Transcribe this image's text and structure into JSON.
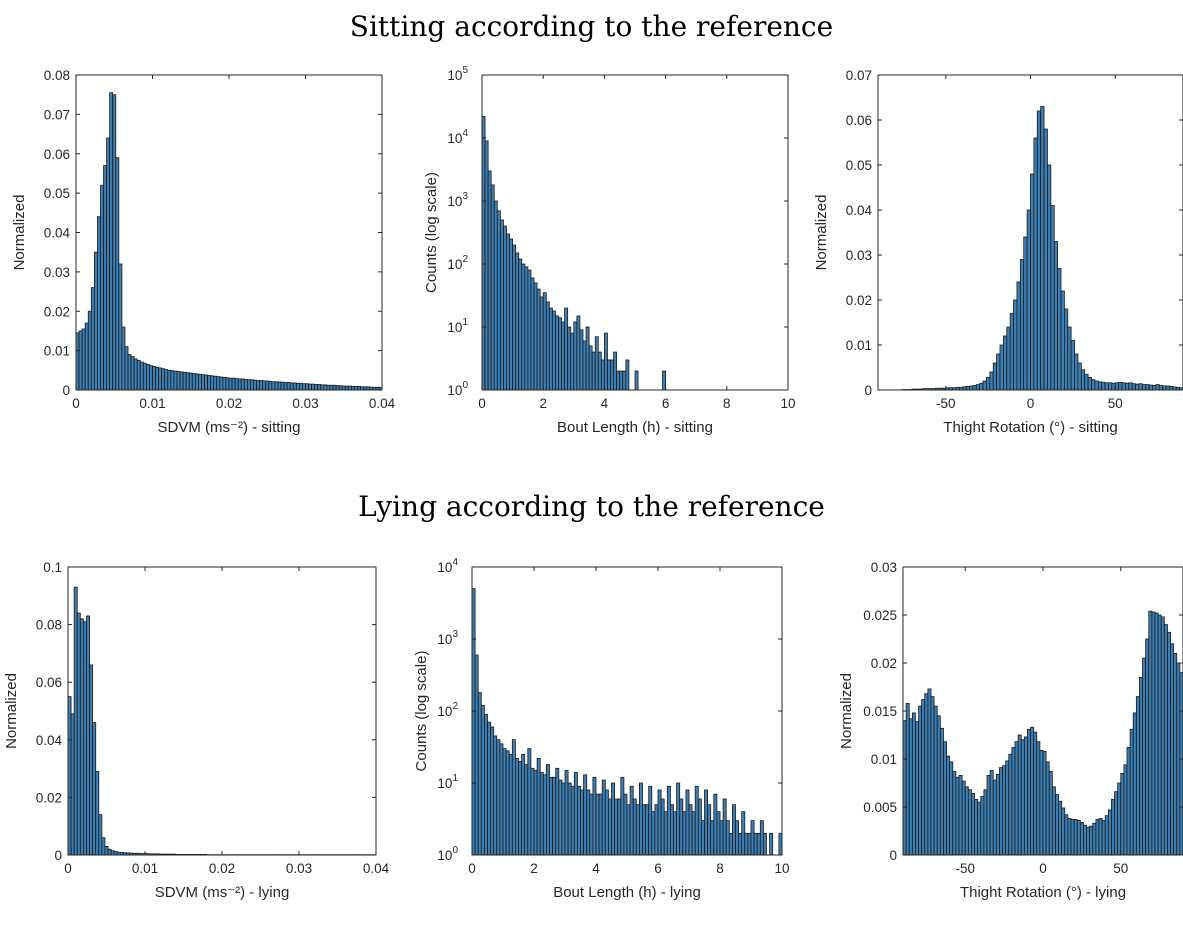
{
  "sections": [
    {
      "title": "Sitting according to the reference"
    },
    {
      "title": "Lying according to the reference"
    }
  ],
  "colors": {
    "bar": "#3d7fb3",
    "edge": "#1a1a1a",
    "axis": "#262626"
  },
  "chart_data": [
    {
      "type": "bar",
      "section": 0,
      "xlabel": "SDVM (ms⁻²) - sitting",
      "ylabel": "Normalized",
      "xlim": [
        0,
        0.04
      ],
      "ylim": [
        0,
        0.08
      ],
      "xticks": [
        0,
        0.01,
        0.02,
        0.03,
        0.04
      ],
      "xticklabels": [
        "0",
        "0.01",
        "0.02",
        "0.03",
        "0.04"
      ],
      "yticks": [
        0,
        0.01,
        0.02,
        0.03,
        0.04,
        0.05,
        0.06,
        0.07,
        0.08
      ],
      "yticklabels": [
        "0",
        "0.01",
        "0.02",
        "0.03",
        "0.04",
        "0.05",
        "0.06",
        "0.07",
        "0.08"
      ],
      "log_scale": false,
      "bin_start": 0,
      "bin_width": 0.0004,
      "values": [
        0.0145,
        0.015,
        0.0155,
        0.017,
        0.02,
        0.026,
        0.035,
        0.044,
        0.052,
        0.057,
        0.064,
        0.0755,
        0.075,
        0.059,
        0.032,
        0.016,
        0.011,
        0.009,
        0.0085,
        0.0079,
        0.0075,
        0.0071,
        0.0068,
        0.0065,
        0.0062,
        0.006,
        0.0058,
        0.0056,
        0.0054,
        0.0052,
        0.005,
        0.0049,
        0.0048,
        0.0047,
        0.0046,
        0.0045,
        0.0044,
        0.0043,
        0.0042,
        0.0041,
        0.004,
        0.0039,
        0.0038,
        0.0037,
        0.0036,
        0.0035,
        0.0034,
        0.0033,
        0.0032,
        0.0031,
        0.003,
        0.003,
        0.0029,
        0.0028,
        0.0028,
        0.0027,
        0.0026,
        0.0026,
        0.0025,
        0.0024,
        0.0024,
        0.0023,
        0.0023,
        0.0022,
        0.0021,
        0.0021,
        0.002,
        0.002,
        0.0019,
        0.0019,
        0.0018,
        0.0018,
        0.0017,
        0.0017,
        0.0016,
        0.0016,
        0.0015,
        0.0015,
        0.0014,
        0.0014,
        0.0013,
        0.0013,
        0.0012,
        0.0012,
        0.0012,
        0.0011,
        0.0011,
        0.001,
        0.001,
        0.001,
        0.0009,
        0.0009,
        0.0009,
        0.0008,
        0.0008,
        0.0008,
        0.0007,
        0.0007,
        0.0007,
        0.0007
      ]
    },
    {
      "type": "bar",
      "section": 0,
      "xlabel": "Bout Length (h) - sitting",
      "ylabel": "Counts (log scale)",
      "xlim": [
        0,
        10
      ],
      "ylim": [
        1,
        100000
      ],
      "xticks": [
        0,
        2,
        4,
        6,
        8,
        10
      ],
      "xticklabels": [
        "0",
        "2",
        "4",
        "6",
        "8",
        "10"
      ],
      "yticks": [
        1,
        10,
        100,
        1000,
        10000,
        100000
      ],
      "yticklabels": [
        "10",
        "10",
        "10",
        "10",
        "10",
        "10"
      ],
      "yticksup": [
        "0",
        "1",
        "2",
        "3",
        "4",
        "5"
      ],
      "log_scale": true,
      "bin_start": 0,
      "bin_width": 0.1,
      "values": [
        22000,
        9000,
        3000,
        1800,
        1000,
        700,
        500,
        400,
        300,
        250,
        200,
        150,
        120,
        100,
        90,
        80,
        60,
        50,
        40,
        30,
        35,
        25,
        20,
        18,
        15,
        14,
        12,
        20,
        10,
        8,
        12,
        15,
        9,
        6,
        10,
        5,
        4,
        7,
        4,
        3,
        8,
        3,
        3,
        4,
        2,
        2,
        2,
        3,
        1,
        1,
        2,
        1,
        1,
        1,
        1,
        1,
        1,
        1,
        1,
        2
      ]
    },
    {
      "type": "bar",
      "section": 0,
      "xlabel": "Thight Rotation (°) - sitting",
      "ylabel": "Normalized",
      "xlim": [
        -90,
        90
      ],
      "ylim": [
        0,
        0.07
      ],
      "xticks": [
        -50,
        0,
        50
      ],
      "xticklabels": [
        "-50",
        "0",
        "50"
      ],
      "yticks": [
        0,
        0.01,
        0.02,
        0.03,
        0.04,
        0.05,
        0.06,
        0.07
      ],
      "yticklabels": [
        "0",
        "0.01",
        "0.02",
        "0.03",
        "0.04",
        "0.05",
        "0.06",
        "0.07"
      ],
      "log_scale": false,
      "bin_start": -90,
      "bin_width": 2,
      "values": [
        0,
        0,
        0,
        0,
        0,
        0,
        0,
        0.0001,
        0.0001,
        0.0001,
        0.0002,
        0.0002,
        0.0002,
        0.0003,
        0.0003,
        0.0003,
        0.0003,
        0.0004,
        0.0004,
        0.0004,
        0.0005,
        0.0005,
        0.0005,
        0.0006,
        0.0006,
        0.0007,
        0.0008,
        0.0009,
        0.001,
        0.0012,
        0.0015,
        0.002,
        0.0028,
        0.004,
        0.006,
        0.008,
        0.01,
        0.012,
        0.014,
        0.017,
        0.02,
        0.024,
        0.029,
        0.034,
        0.04,
        0.048,
        0.056,
        0.062,
        0.063,
        0.058,
        0.05,
        0.041,
        0.033,
        0.027,
        0.022,
        0.018,
        0.014,
        0.011,
        0.008,
        0.006,
        0.0045,
        0.0035,
        0.0028,
        0.0023,
        0.002,
        0.0018,
        0.0017,
        0.0016,
        0.0016,
        0.0015,
        0.0016,
        0.0017,
        0.0016,
        0.0015,
        0.0016,
        0.0014,
        0.0013,
        0.0014,
        0.0012,
        0.0012,
        0.0011,
        0.001,
        0.0012,
        0.001,
        0.0009,
        0.0009,
        0.0008,
        0.0007,
        0.0006,
        0.0005
      ]
    },
    {
      "type": "bar",
      "section": 1,
      "xlabel": "SDVM (ms⁻²) - lying",
      "ylabel": "Normalized",
      "xlim": [
        0,
        0.04
      ],
      "ylim": [
        0,
        0.1
      ],
      "xticks": [
        0,
        0.01,
        0.02,
        0.03,
        0.04
      ],
      "xticklabels": [
        "0",
        "0.01",
        "0.02",
        "0.03",
        "0.04"
      ],
      "yticks": [
        0,
        0.02,
        0.04,
        0.06,
        0.08,
        0.1
      ],
      "yticklabels": [
        "0",
        "0.02",
        "0.04",
        "0.06",
        "0.08",
        "0.1"
      ],
      "log_scale": false,
      "bin_start": 0,
      "bin_width": 0.0004,
      "values": [
        0.055,
        0.049,
        0.093,
        0.084,
        0.082,
        0.081,
        0.083,
        0.066,
        0.046,
        0.029,
        0.014,
        0.006,
        0.003,
        0.002,
        0.0015,
        0.0012,
        0.001,
        0.0009,
        0.0008,
        0.0007,
        0.0007,
        0.0006,
        0.0006,
        0.0005,
        0.0005,
        0.0005,
        0.0004,
        0.0004,
        0.0004,
        0.0004,
        0.0003,
        0.0003,
        0.0003,
        0.0003,
        0.0003,
        0.0002,
        0.0002,
        0.0002,
        0.0002,
        0.0002,
        0.0002,
        0.0002,
        0.0002,
        0.0002,
        0.0002,
        0.0001,
        0.0001,
        0.0001,
        0.0001,
        0.0001,
        0.0001,
        0.0001,
        0.0001,
        0.0001,
        0.0001,
        0.0001,
        0.0001,
        0.0001,
        0.0001,
        0.0001,
        0.0001,
        0.0001,
        0.0001,
        0.0001,
        0.0001,
        0.0001,
        0.0001,
        0.0001,
        0.0001,
        0.0001,
        0.0001,
        0.0001,
        0.0001,
        0.0001,
        0.0001,
        0.0001,
        0.0001,
        0.0001,
        0.0001,
        0.0001,
        0.0001,
        0.0001,
        0.0001,
        0.0001,
        0.0001,
        0.0001,
        0.0001,
        0.0001,
        0.0001,
        0.0001,
        0.0001,
        0.0001,
        0.0001,
        0.0001,
        0.0001,
        0.0001,
        0.0001,
        0.0001,
        0.0001,
        0.0001
      ]
    },
    {
      "type": "bar",
      "section": 1,
      "xlabel": "Bout Length (h) - lying",
      "ylabel": "Counts (log scale)",
      "xlim": [
        0,
        10
      ],
      "ylim": [
        1,
        10000
      ],
      "xticks": [
        0,
        2,
        4,
        6,
        8,
        10
      ],
      "xticklabels": [
        "0",
        "2",
        "4",
        "6",
        "8",
        "10"
      ],
      "yticks": [
        1,
        10,
        100,
        1000,
        10000
      ],
      "yticklabels": [
        "10",
        "10",
        "10",
        "10",
        "10"
      ],
      "yticksup": [
        "0",
        "1",
        "2",
        "3",
        "4"
      ],
      "log_scale": true,
      "bin_start": 0,
      "bin_width": 0.1,
      "values": [
        5000,
        600,
        180,
        120,
        90,
        70,
        60,
        45,
        40,
        35,
        30,
        28,
        25,
        40,
        22,
        20,
        25,
        18,
        30,
        16,
        15,
        22,
        14,
        13,
        18,
        12,
        12,
        16,
        11,
        10,
        15,
        10,
        9,
        14,
        9,
        8,
        13,
        8,
        7,
        12,
        7,
        7,
        11,
        8,
        6,
        10,
        6,
        6,
        12,
        7,
        5,
        9,
        6,
        5,
        10,
        5,
        5,
        9,
        4,
        5,
        8,
        6,
        4,
        9,
        5,
        4,
        10,
        6,
        4,
        8,
        5,
        4,
        9,
        6,
        3,
        8,
        5,
        3,
        7,
        4,
        3,
        6,
        3,
        2,
        5,
        3,
        2,
        4,
        2,
        2,
        3,
        2,
        2,
        3,
        2,
        1,
        2,
        1,
        1,
        2
      ]
    },
    {
      "type": "bar",
      "section": 1,
      "xlabel": "Thight Rotation (°) - lying",
      "ylabel": "Normalized",
      "xlim": [
        -90,
        90
      ],
      "ylim": [
        0,
        0.03
      ],
      "xticks": [
        -50,
        0,
        50
      ],
      "xticklabels": [
        "-50",
        "0",
        "50"
      ],
      "yticks": [
        0,
        0.005,
        0.01,
        0.015,
        0.02,
        0.025,
        0.03
      ],
      "yticklabels": [
        "0",
        "0.005",
        "0.01",
        "0.015",
        "0.02",
        "0.025",
        "0.03"
      ],
      "log_scale": false,
      "bin_start": -90,
      "bin_width": 2,
      "values": [
        0.014,
        0.0158,
        0.0142,
        0.0148,
        0.0139,
        0.0155,
        0.0162,
        0.0168,
        0.0173,
        0.0165,
        0.0155,
        0.0145,
        0.0132,
        0.0118,
        0.0103,
        0.0097,
        0.0087,
        0.0081,
        0.0083,
        0.0077,
        0.0071,
        0.0068,
        0.0064,
        0.0058,
        0.0055,
        0.0061,
        0.0068,
        0.0083,
        0.0088,
        0.0078,
        0.0084,
        0.0091,
        0.0093,
        0.0098,
        0.0105,
        0.0112,
        0.0118,
        0.0125,
        0.012,
        0.0123,
        0.0131,
        0.0133,
        0.0128,
        0.0118,
        0.0109,
        0.0108,
        0.0097,
        0.0087,
        0.0071,
        0.0063,
        0.0056,
        0.0049,
        0.0042,
        0.0038,
        0.0037,
        0.0037,
        0.0036,
        0.0034,
        0.0031,
        0.0029,
        0.003,
        0.0033,
        0.0037,
        0.0038,
        0.0036,
        0.0041,
        0.0047,
        0.0058,
        0.0066,
        0.0075,
        0.0085,
        0.0094,
        0.0112,
        0.0131,
        0.0148,
        0.0165,
        0.0185,
        0.0205,
        0.0225,
        0.0254,
        0.0253,
        0.0252,
        0.025,
        0.0248,
        0.024,
        0.0232,
        0.022,
        0.021,
        0.02,
        0.019
      ]
    }
  ]
}
